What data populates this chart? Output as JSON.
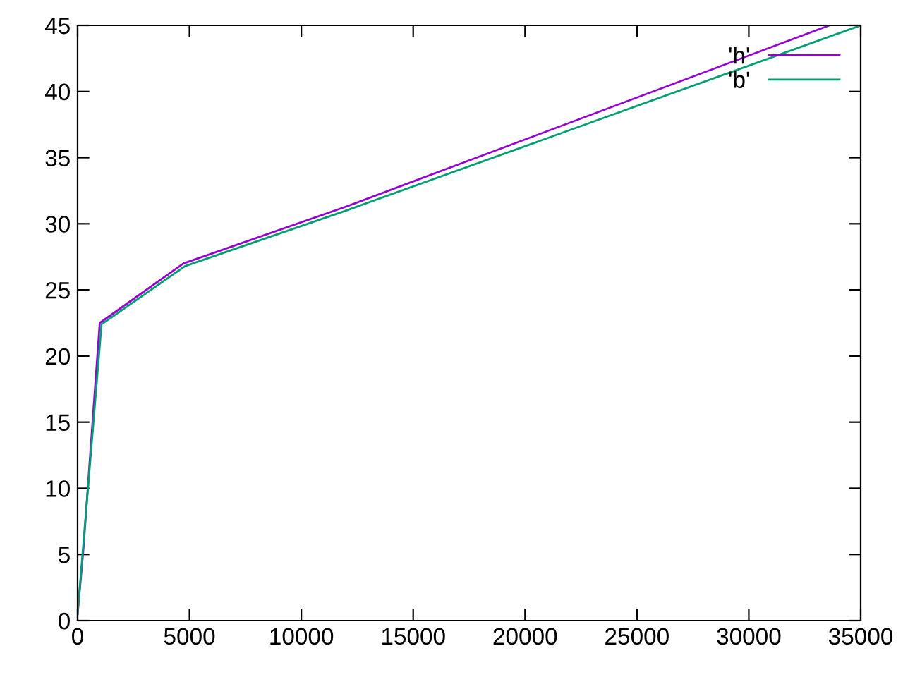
{
  "chart_data": {
    "type": "line",
    "xlim": [
      0,
      35000
    ],
    "ylim": [
      0,
      45
    ],
    "xticks": [
      0,
      5000,
      10000,
      15000,
      20000,
      25000,
      30000,
      35000
    ],
    "yticks": [
      0,
      5,
      10,
      15,
      20,
      25,
      30,
      35,
      40,
      45
    ],
    "grid": false,
    "legend": "top right",
    "marker": "none",
    "line_style": "solid",
    "series": [
      {
        "name": "'h'",
        "color": "#9400d3",
        "x": [
          0,
          250,
          990,
          4730,
          12000,
          33600
        ],
        "values": [
          0.5,
          5.2,
          22.5,
          27.0,
          31.3,
          45
        ]
      },
      {
        "name": "'b'",
        "color": "#009e73",
        "x": [
          0,
          1070,
          4800,
          12000,
          35000
        ],
        "values": [
          0.5,
          22.4,
          26.8,
          31.0,
          45
        ]
      }
    ]
  }
}
